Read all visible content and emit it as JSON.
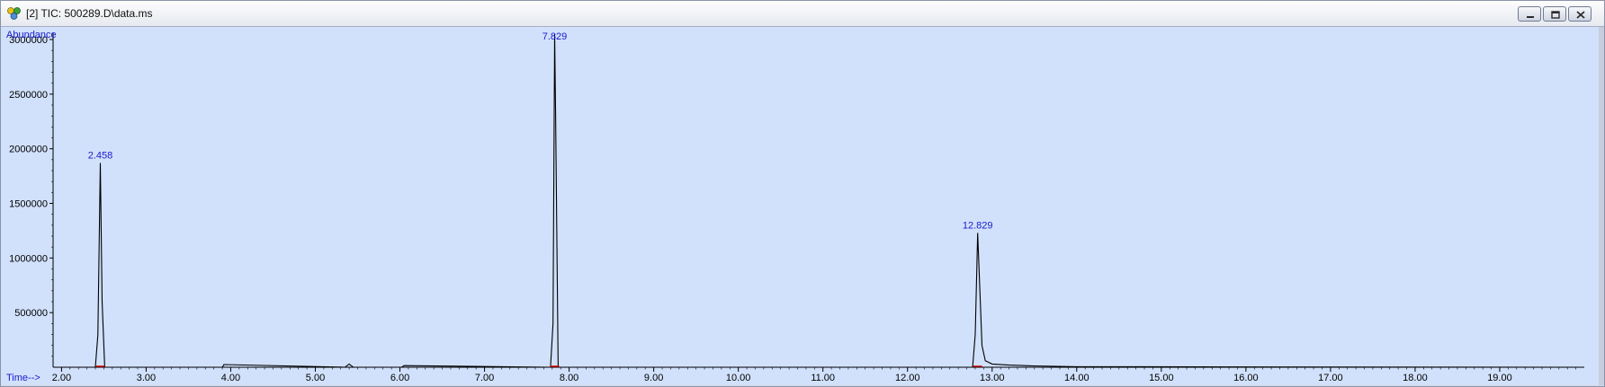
{
  "window": {
    "title": "[2] TIC: 500289.D\\data.ms",
    "controls": [
      "minimize-icon",
      "restore-icon",
      "close-icon"
    ]
  },
  "colors": {
    "plot_background": "#d1e1fb",
    "trace": "#000000",
    "label_text": "#1a1acc",
    "baseline_marker": "#cc0000"
  },
  "chart_data": {
    "type": "line",
    "title": "",
    "ylabel": "Abundance",
    "xlabel": "Time-->",
    "xlim": [
      1.9,
      20.0
    ],
    "ylim": [
      0,
      3000000
    ],
    "x_ticks": [
      "2.00",
      "3.00",
      "4.00",
      "5.00",
      "6.00",
      "7.00",
      "8.00",
      "9.00",
      "10.00",
      "11.00",
      "12.00",
      "13.00",
      "14.00",
      "15.00",
      "16.00",
      "17.00",
      "18.00",
      "19.00"
    ],
    "y_ticks": [
      "500000",
      "1000000",
      "1500000",
      "2000000",
      "2500000",
      "3000000"
    ],
    "grid": false,
    "peaks": [
      {
        "label": "2.458",
        "x": 2.458,
        "y": 1870000
      },
      {
        "label": "7.829",
        "x": 7.829,
        "y": 3050000
      },
      {
        "label": "12.829",
        "x": 12.829,
        "y": 1230000
      }
    ],
    "series": [
      {
        "x": [
          1.9,
          2.4,
          2.43,
          2.458,
          2.48,
          2.51,
          3.9,
          3.92,
          5.35,
          5.4,
          5.45,
          6.02,
          6.05,
          7.78,
          7.81,
          7.829,
          7.84,
          7.87,
          12.77,
          12.8,
          12.829,
          12.85,
          12.88,
          12.92,
          13.0,
          13.2,
          13.5,
          14.0,
          20.0
        ],
        "y": [
          0,
          0,
          300000,
          1870000,
          600000,
          0,
          0,
          25000,
          0,
          30000,
          0,
          0,
          15000,
          0,
          400000,
          3050000,
          2300000,
          0,
          0,
          300000,
          1230000,
          800000,
          200000,
          60000,
          30000,
          20000,
          12000,
          5000,
          0
        ]
      }
    ]
  }
}
